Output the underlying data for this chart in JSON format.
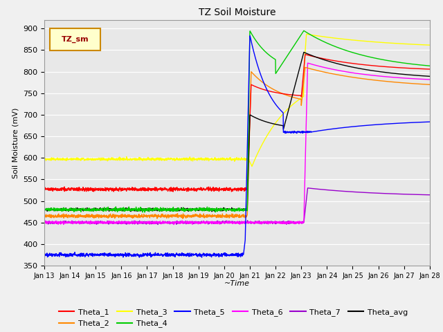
{
  "title": "TZ Soil Moisture",
  "xlabel": "~Time",
  "ylabel": "Soil Moisture (mV)",
  "ylim": [
    350,
    920
  ],
  "xlim": [
    0,
    15
  ],
  "tick_labels": [
    "Jan 13",
    "Jan 14",
    "Jan 15",
    "Jan 16",
    "Jan 17",
    "Jan 18",
    "Jan 19",
    "Jan 20",
    "Jan 21",
    "Jan 22",
    "Jan 23",
    "Jan 24",
    "Jan 25",
    "Jan 26",
    "Jan 27",
    "Jan 28"
  ],
  "legend_label": "TZ_sm",
  "series_colors": {
    "Theta_1": "#ff0000",
    "Theta_2": "#ff8800",
    "Theta_3": "#ffff00",
    "Theta_4": "#00cc00",
    "Theta_5": "#0000ff",
    "Theta_6": "#ff00ff",
    "Theta_7": "#9900cc",
    "Theta_avg": "#000000"
  }
}
